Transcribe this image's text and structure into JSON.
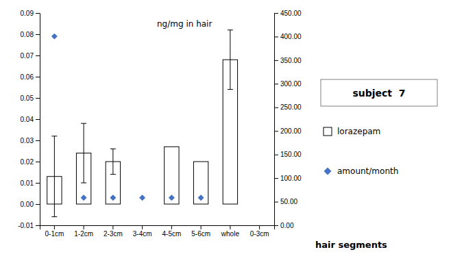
{
  "chart_data": {
    "type": "bar",
    "title": "subject  7",
    "categories": [
      "0-1cm",
      "1-2cm",
      "2-3cm",
      "3-4cm",
      "4-5cm",
      "5-6cm",
      "whole",
      "0-3cm"
    ],
    "series": [
      {
        "name": "lorazepam",
        "type": "bar",
        "color": "#ffffff",
        "values": [
          0.013,
          0.024,
          0.02,
          0.0,
          0.027,
          0.02,
          0.068,
          0.0
        ],
        "errors": [
          0.019,
          0.014,
          0.006,
          0.0,
          0.0,
          0.0,
          0.014,
          0.0
        ]
      },
      {
        "name": "amount/month",
        "type": "scatter",
        "marker": "diamond",
        "color": "#4472c4",
        "values": [
          0.079,
          0.003,
          0.003,
          0.003,
          0.003,
          0.003,
          null,
          null
        ]
      }
    ],
    "ylim": [
      -0.01,
      0.09
    ],
    "yticks": [
      -0.01,
      {
        "value": 0.0,
        "label": "0.00"
      },
      0.01,
      0.02,
      0.03,
      0.04,
      0.05,
      0.06,
      0.07,
      0.08,
      0.09
    ],
    "ylabel": "ng/mg in hair",
    "y2lim": [
      0.0,
      450.0
    ],
    "y2ticks": [
      {
        "value": 0.0,
        "label": "0.00"
      },
      {
        "value": 50.0,
        "label": "50.00"
      },
      {
        "value": 100.0,
        "label": "100.00"
      },
      {
        "value": 150.0,
        "label": "150.00"
      },
      {
        "value": 200.0,
        "label": "200.00"
      },
      {
        "value": 250.0,
        "label": "250.00"
      },
      {
        "value": 300.0,
        "label": "300.00"
      },
      {
        "value": 350.0,
        "label": "350.00"
      },
      {
        "value": 400.0,
        "label": "400.00"
      },
      {
        "value": 450.0,
        "label": "450.00"
      }
    ],
    "y2label": "hair segments",
    "grid": false,
    "legend": "right"
  }
}
